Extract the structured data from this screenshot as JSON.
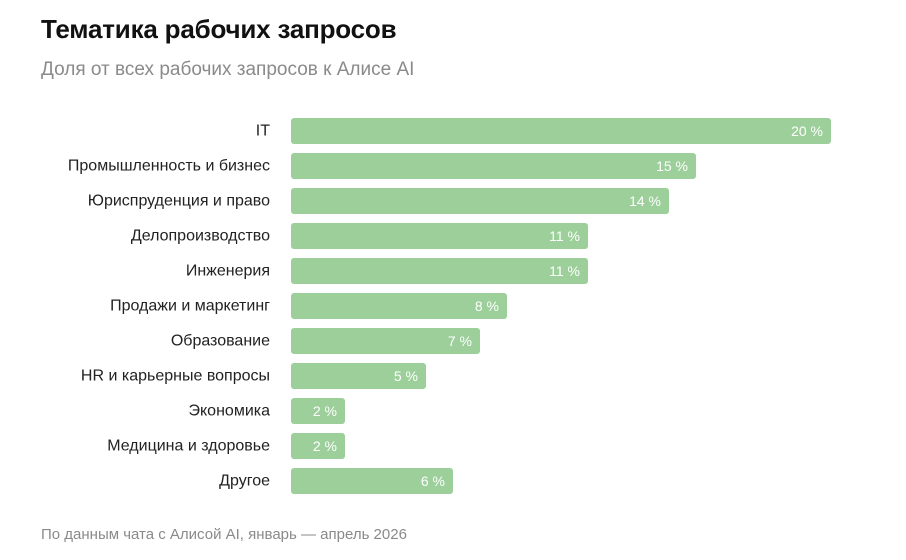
{
  "header": {
    "title": "Тематика рабочих запросов",
    "subtitle": "Доля от всех рабочих запросов к Алисе AI"
  },
  "footer": {
    "source": "По данным чата с Алисой AI, январь — апрель 2026"
  },
  "colors": {
    "bar": "#9ccf9a",
    "value_text": "#ffffff"
  },
  "chart_data": {
    "type": "bar",
    "orientation": "horizontal",
    "title": "Тематика рабочих запросов",
    "subtitle": "Доля от всех рабочих запросов к Алисе AI",
    "categories": [
      "IT",
      "Промышленность и бизнес",
      "Юриспруденция и право",
      "Делопроизводство",
      "Инженерия",
      "Продажи и маркетинг",
      "Образование",
      "HR и карьерные вопросы",
      "Экономика",
      "Медицина и здоровье",
      "Другое"
    ],
    "values": [
      20,
      15,
      14,
      11,
      11,
      8,
      7,
      5,
      2,
      2,
      6
    ],
    "value_labels": [
      "20 %",
      "15 %",
      "14 %",
      "11 %",
      "11 %",
      "8 %",
      "7 %",
      "5 %",
      "2 %",
      "2 %",
      "6 %"
    ],
    "unit": "%",
    "xlim": [
      0,
      20
    ],
    "grid": false,
    "legend": "none"
  }
}
